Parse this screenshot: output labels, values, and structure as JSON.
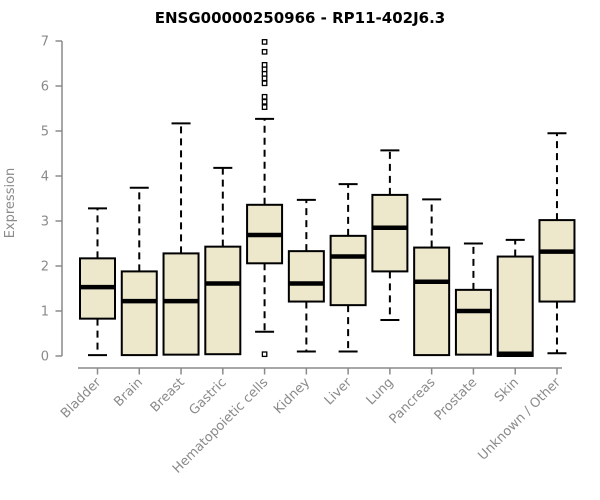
{
  "page": {
    "background": "#FFFFFF"
  },
  "chart_data": {
    "type": "boxplot",
    "title": "ENSG00000250966 - RP11-402J6.3",
    "xlabel": "",
    "ylabel": "Expression",
    "ylim": [
      0,
      7
    ],
    "yticks": [
      0,
      1,
      2,
      3,
      4,
      5,
      6,
      7
    ],
    "grid": false,
    "legend": false,
    "categories": [
      "Bladder",
      "Brain",
      "Breast",
      "Gastric",
      "Hematopoietic cells",
      "Kidney",
      "Liver",
      "Lung",
      "Pancreas",
      "Prostate",
      "Skin",
      "Unknown / Other"
    ],
    "series": [
      {
        "name": "Bladder",
        "whisker_low": 0.02,
        "q1": 0.83,
        "median": 1.53,
        "q3": 2.17,
        "whisker_high": 3.28,
        "outliers": []
      },
      {
        "name": "Brain",
        "whisker_low": 0.02,
        "q1": 0.02,
        "median": 1.22,
        "q3": 1.88,
        "whisker_high": 3.74,
        "outliers": []
      },
      {
        "name": "Breast",
        "whisker_low": 0.03,
        "q1": 0.03,
        "median": 1.22,
        "q3": 2.28,
        "whisker_high": 5.17,
        "outliers": []
      },
      {
        "name": "Gastric",
        "whisker_low": 0.04,
        "q1": 0.04,
        "median": 1.61,
        "q3": 2.43,
        "whisker_high": 4.18,
        "outliers": []
      },
      {
        "name": "Hematopoietic cells",
        "whisker_low": 0.54,
        "q1": 2.06,
        "median": 2.69,
        "q3": 3.36,
        "whisker_high": 5.27,
        "outliers": [
          6.98,
          6.76,
          6.47,
          6.37,
          6.27,
          6.17,
          6.06,
          5.76,
          5.65,
          5.53,
          0.04
        ]
      },
      {
        "name": "Kidney",
        "whisker_low": 0.1,
        "q1": 1.21,
        "median": 1.61,
        "q3": 2.33,
        "whisker_high": 3.47,
        "outliers": []
      },
      {
        "name": "Liver",
        "whisker_low": 0.1,
        "q1": 1.13,
        "median": 2.21,
        "q3": 2.67,
        "whisker_high": 3.82,
        "outliers": []
      },
      {
        "name": "Lung",
        "whisker_low": 0.8,
        "q1": 1.88,
        "median": 2.85,
        "q3": 3.58,
        "whisker_high": 4.57,
        "outliers": []
      },
      {
        "name": "Pancreas",
        "whisker_low": 0.02,
        "q1": 0.02,
        "median": 1.65,
        "q3": 2.41,
        "whisker_high": 3.48,
        "outliers": []
      },
      {
        "name": "Prostate",
        "whisker_low": 0.03,
        "q1": 0.03,
        "median": 1.0,
        "q3": 1.47,
        "whisker_high": 2.5,
        "outliers": []
      },
      {
        "name": "Skin",
        "whisker_low": 0.0,
        "q1": 0.0,
        "median": 0.05,
        "q3": 2.21,
        "whisker_high": 2.58,
        "outliers": []
      },
      {
        "name": "Unknown / Other",
        "whisker_low": 0.06,
        "q1": 1.21,
        "median": 2.32,
        "q3": 3.02,
        "whisker_high": 4.95,
        "outliers": []
      }
    ],
    "colors": {
      "box_fill": "#EDE7CB",
      "box_border": "#000000",
      "median": "#000000",
      "whisker": "#000000",
      "outlier": "#000000",
      "axis": "#8A8A8A",
      "tick_label": "#8A8A8A",
      "title": "#000000",
      "background": "#FFFFFF"
    }
  }
}
